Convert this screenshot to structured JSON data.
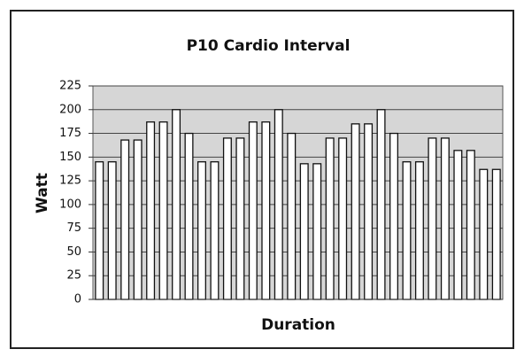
{
  "chart_data": {
    "type": "bar",
    "title": "P10 Cardio Interval",
    "x_label": "Duration",
    "y_label": "Watt",
    "values": [
      145,
      145,
      168,
      168,
      187,
      187,
      200,
      175,
      145,
      145,
      170,
      170,
      187,
      187,
      200,
      175,
      143,
      143,
      170,
      170,
      185,
      185,
      200,
      175,
      145,
      145,
      170,
      170,
      157,
      157,
      137,
      137
    ],
    "color": "#ffffff",
    "ylim": [
      0,
      225
    ],
    "yticks": [
      0,
      25,
      50,
      75,
      100,
      125,
      150,
      175,
      200,
      225
    ],
    "grid": true
  }
}
